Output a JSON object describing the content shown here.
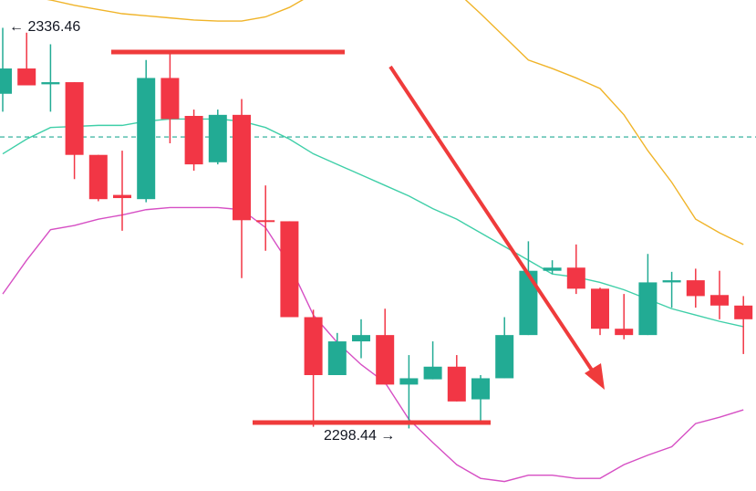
{
  "chart_data": {
    "type": "candlestick",
    "ylim": [
      2292.5,
      2339.1
    ],
    "up_color": "#22ab94",
    "down_color": "#f23645",
    "open": [
      2330.2,
      2332.6,
      2331.1,
      2331.3,
      2324.4,
      2320.6,
      2320.2,
      2331.7,
      2328.1,
      2323.7,
      2328.2,
      2318.2,
      2318.1,
      2309.0,
      2303.5,
      2306.7,
      2307.3,
      2302.6,
      2303.1,
      2304.3,
      2301.2,
      2303.2,
      2307.3,
      2313.4,
      2313.7,
      2311.7,
      2307.9,
      2307.3,
      2312.3,
      2312.5,
      2311.1,
      2310.1
    ],
    "high": [
      2336.46,
      2336.0,
      2334.9,
      2331.3,
      2324.4,
      2324.8,
      2333.4,
      2334.0,
      2328.7,
      2328.7,
      2329.7,
      2321.5,
      2318.1,
      2309.7,
      2307.5,
      2308.8,
      2309.8,
      2305.4,
      2306.7,
      2305.4,
      2303.5,
      2309.0,
      2316.2,
      2314.4,
      2315.9,
      2311.8,
      2311.2,
      2315.0,
      2313.3,
      2313.6,
      2313.4,
      2311.0
    ],
    "low": [
      2328.5,
      2331.0,
      2328.5,
      2322.1,
      2320.0,
      2317.2,
      2319.9,
      2325.5,
      2322.9,
      2323.5,
      2312.7,
      2315.3,
      2309.0,
      2298.6,
      2303.5,
      2305.1,
      2302.6,
      2298.44,
      2303.1,
      2301.0,
      2298.8,
      2303.2,
      2307.3,
      2313.1,
      2311.2,
      2307.3,
      2306.9,
      2307.3,
      2309.9,
      2309.9,
      2308.8,
      2305.5
    ],
    "close": [
      2332.6,
      2331.0,
      2331.3,
      2324.4,
      2320.2,
      2320.3,
      2331.7,
      2327.8,
      2323.5,
      2328.2,
      2318.2,
      2318.1,
      2309.0,
      2303.5,
      2306.7,
      2307.3,
      2302.6,
      2303.2,
      2304.3,
      2301.0,
      2303.2,
      2307.3,
      2313.4,
      2313.7,
      2311.7,
      2307.9,
      2307.3,
      2312.3,
      2312.5,
      2311.0,
      2310.1,
      2308.8
    ],
    "bands": [
      {
        "color": "#f0b429",
        "values": [
          2339.9,
          2339.5,
          2339.1,
          2338.6,
          2338.2,
          2337.8,
          2337.6,
          2337.4,
          2337.2,
          2337.1,
          2337.1,
          2337.5,
          2338.4,
          2339.7,
          2340.8,
          2341.6,
          2342.1,
          2342.1,
          2341.6,
          2339.9,
          2337.8,
          2335.6,
          2333.4,
          2332.6,
          2331.7,
          2330.7,
          2328.2,
          2324.8,
          2321.8,
          2318.3,
          2317.0,
          2315.9
        ]
      },
      {
        "color": "#3fcfa8",
        "values": [
          2324.5,
          2325.9,
          2327.0,
          2327.1,
          2327.2,
          2327.2,
          2327.6,
          2327.8,
          2327.8,
          2327.8,
          2327.6,
          2327.0,
          2325.9,
          2324.5,
          2323.5,
          2322.5,
          2321.5,
          2320.5,
          2319.3,
          2318.3,
          2317.0,
          2315.7,
          2314.4,
          2313.1,
          2312.8,
          2312.3,
          2311.6,
          2310.7,
          2309.8,
          2309.2,
          2308.6,
          2308.1
        ]
      },
      {
        "color": "#d64fc4",
        "values": [
          2311.2,
          2314.4,
          2317.3,
          2317.7,
          2318.3,
          2318.7,
          2319.2,
          2319.4,
          2319.4,
          2319.4,
          2319.2,
          2317.5,
          2314.0,
          2309.2,
          2306.6,
          2304.5,
          2302.8,
          2299.3,
          2297.1,
          2295.0,
          2293.7,
          2293.4,
          2294.0,
          2294.0,
          2293.7,
          2293.7,
          2295.0,
          2295.9,
          2296.7,
          2298.9,
          2299.5,
          2300.2
        ]
      }
    ],
    "price_line": 2326.1,
    "price_line_color": "#22ab94",
    "high_label": "← 2336.46",
    "low_label": "2298.44 →"
  }
}
